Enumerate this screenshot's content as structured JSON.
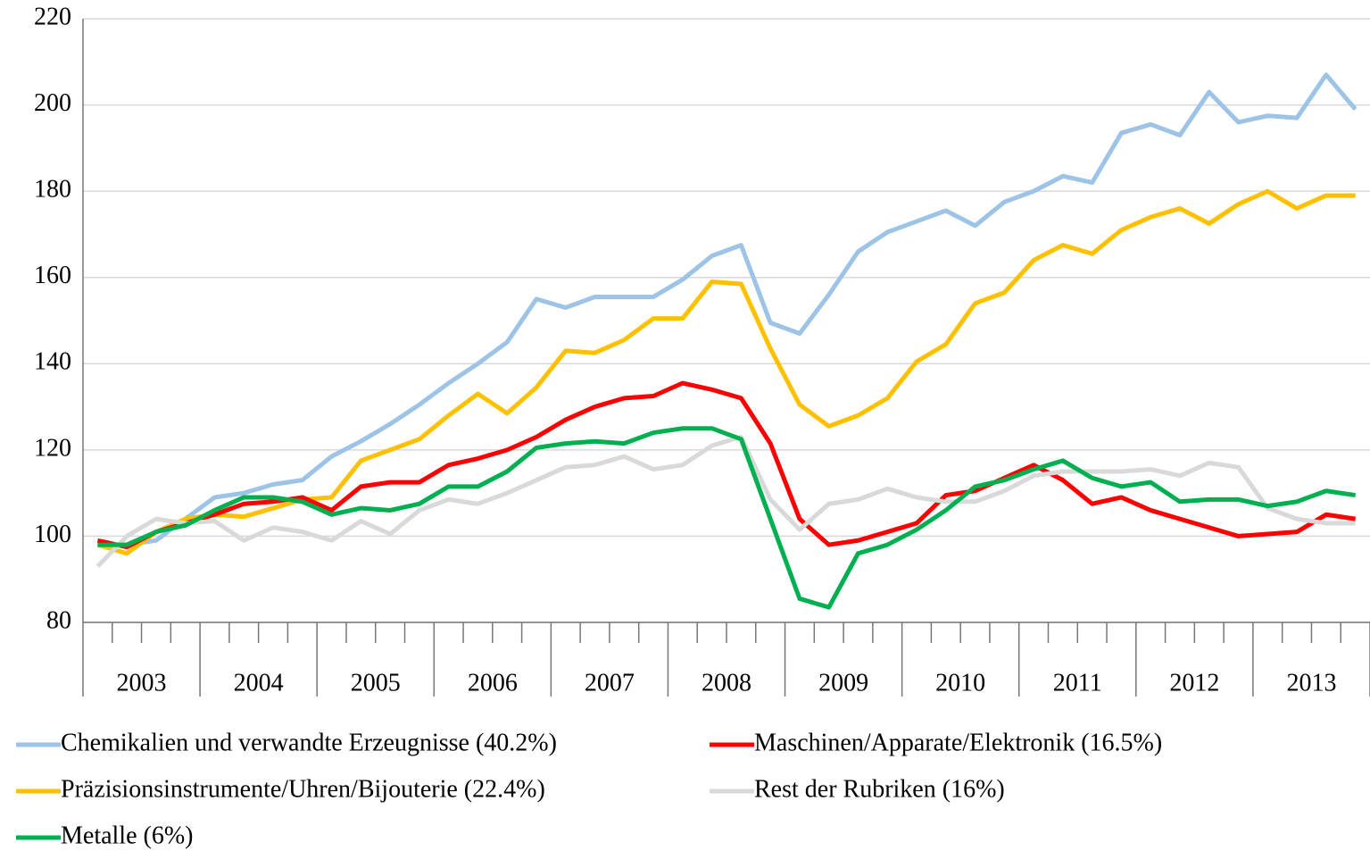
{
  "chart_data": {
    "type": "line",
    "categories": [
      null,
      null,
      null,
      null,
      null,
      null,
      null,
      null,
      null,
      null,
      null,
      null,
      null,
      null,
      null,
      null,
      null,
      null,
      null,
      null,
      null,
      null,
      null,
      null,
      null,
      null,
      null,
      null,
      null,
      null,
      null,
      null,
      null,
      null,
      null,
      null,
      null,
      null,
      null,
      null,
      null,
      null,
      null,
      null
    ],
    "year_labels": [
      "2003",
      "2004",
      "2005",
      "2006",
      "2007",
      "2008",
      "2009",
      "2010",
      "2011",
      "2012",
      "2013"
    ],
    "ylim": [
      80,
      220
    ],
    "yticks": [
      80,
      100,
      120,
      140,
      160,
      180,
      200,
      220
    ],
    "grid": true,
    "series": [
      {
        "name": "Chemikalien und verwandte Erzeugnisse (40.2%)",
        "color": "#9dc3e6",
        "values": [
          98,
          98,
          99,
          104,
          109,
          110,
          112,
          113,
          118.5,
          122,
          126,
          130.5,
          135.5,
          140,
          145,
          155,
          153,
          155.5,
          155.5,
          155.5,
          159.5,
          165,
          167.5,
          149.5,
          147,
          156,
          166,
          170.5,
          173,
          175.5,
          172,
          177.5,
          180,
          183.5,
          182,
          193.5,
          195.5,
          193,
          203,
          196,
          197.5,
          197,
          207,
          199
        ]
      },
      {
        "name": "Maschinen/Apparate/Elektronik (16.5%)",
        "color": "#ff0000",
        "values": [
          99,
          97.5,
          101,
          103,
          105,
          107.5,
          108,
          109,
          106,
          111.5,
          112.5,
          112.5,
          116.5,
          118,
          120,
          123,
          127,
          130,
          132,
          132.5,
          135.5,
          134,
          132,
          121.5,
          104,
          98,
          99,
          101,
          103,
          109.5,
          110.5,
          113.5,
          116.5,
          113,
          107.5,
          109,
          106,
          104,
          102,
          100,
          100.5,
          101,
          105,
          104
        ]
      },
      {
        "name": "Präzisionsinstrumente/Uhren/Bijouterie (22.4%)",
        "color": "#ffc000",
        "values": [
          98,
          96,
          101,
          104,
          105,
          104.5,
          106.5,
          108.5,
          109,
          117.5,
          120,
          122.5,
          128,
          133,
          128.5,
          134.5,
          143,
          142.5,
          145.5,
          150.5,
          150.5,
          159,
          158.5,
          143.5,
          130.5,
          125.5,
          128,
          132,
          140.5,
          144.5,
          154,
          156.5,
          164,
          167.5,
          165.5,
          171,
          174,
          176,
          172.5,
          177,
          180,
          176,
          179,
          179
        ]
      },
      {
        "name": "Rest der Rubriken (16%)",
        "color": "#d9d9d9",
        "values": [
          93,
          100,
          104,
          103,
          103.5,
          99,
          102,
          101,
          99,
          103.5,
          100.5,
          106,
          108.5,
          107.5,
          110,
          113,
          116,
          116.5,
          118.5,
          115.5,
          116.5,
          121,
          123,
          108.5,
          101.5,
          107.5,
          108.5,
          111,
          109,
          108,
          108,
          110.5,
          114,
          115,
          115,
          115,
          115.5,
          114,
          117,
          116,
          106.5,
          104,
          103,
          103
        ]
      },
      {
        "name": "Metalle (6%)",
        "color": "#00b050",
        "values": [
          98,
          98,
          101,
          102.5,
          106,
          109,
          109,
          108,
          105,
          106.5,
          106,
          107.5,
          111.5,
          111.5,
          115,
          120.5,
          121.5,
          122,
          121.5,
          124,
          125,
          125,
          122.5,
          104,
          85.5,
          83.5,
          96,
          98,
          101.5,
          106,
          111.5,
          113,
          115.5,
          117.5,
          113.5,
          111.5,
          112.5,
          108,
          108.5,
          108.5,
          107,
          108,
          110.5,
          109.5
        ]
      }
    ]
  }
}
